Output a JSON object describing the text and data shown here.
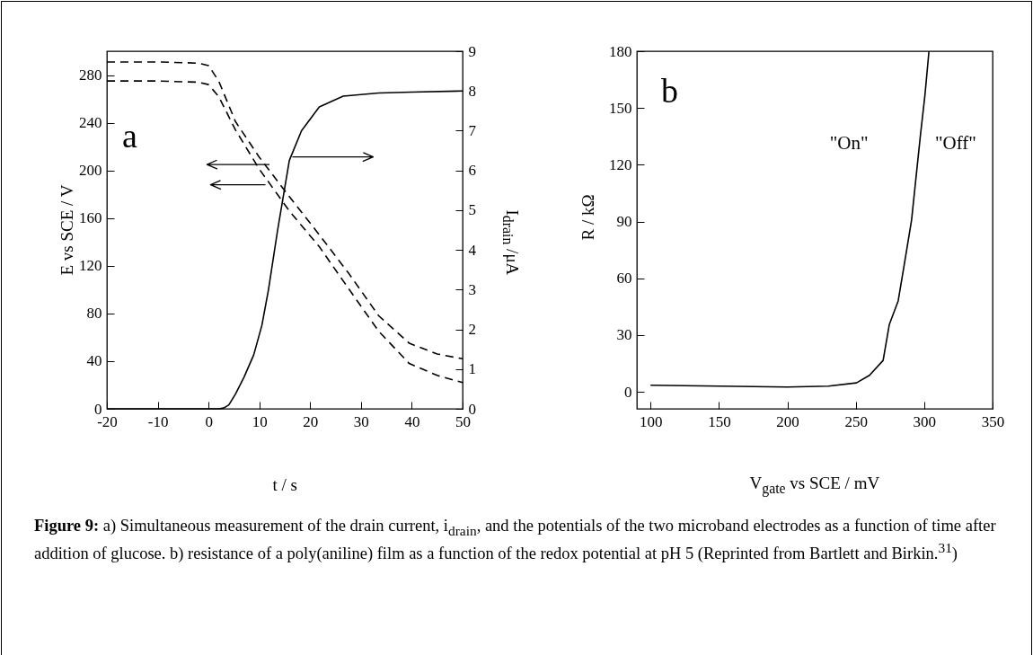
{
  "chart_data": [
    {
      "type": "line",
      "title": "a",
      "xlabel": "t / s",
      "ylabel": "E vs SCE / V",
      "y2label": "I$_{drain}$ /μA",
      "xlim": [
        -20,
        50
      ],
      "xticks": [
        -20,
        -10,
        0,
        10,
        20,
        30,
        40,
        50
      ],
      "ylim": [
        0,
        300
      ],
      "yticks": [
        0,
        40,
        80,
        120,
        160,
        200,
        240,
        280
      ],
      "y2lim": [
        0,
        9
      ],
      "y2ticks": [
        0,
        1,
        2,
        3,
        4,
        5,
        6,
        7,
        8,
        9
      ],
      "grid": false,
      "annotations": [
        "Figure 9: a) Simultaneous measurement of the drain current, i$_{drain}$, and the potentials of the two microband electrodes as a function of time after addition of glucose.  b) resistance of a poly(aniline) film as a function of the redox potential at pH 5 (Reprinted from Bartlett and Birkin.$^{31}$)"
      ],
      "series": [
        {
          "color": "#000000",
          "line_style": "dashed",
          "x": [
            -20,
            -10,
            -2,
            0,
            2,
            5.3,
            10,
            15.9,
            21.8,
            27.7,
            33.5,
            39.5,
            45,
            50
          ],
          "values": [
            291,
            291,
            290,
            288,
            275,
            241,
            211,
            178,
            146,
            113,
            78,
            55,
            46,
            42
          ]
        },
        {
          "color": "#000000",
          "line_style": "dashed",
          "x": [
            -20,
            -10,
            -2,
            0,
            2,
            5.3,
            10,
            15.9,
            21.8,
            27.7,
            33.5,
            39.5,
            45,
            50
          ],
          "values": [
            275,
            275,
            274,
            272,
            262,
            234,
            201,
            166,
            136,
            100,
            65,
            38,
            28,
            22
          ]
        },
        {
          "color": "#000000",
          "line_style": "solid",
          "axis": "y2",
          "x": [
            -20,
            0,
            2,
            3,
            4,
            5.3,
            7,
            8.9,
            10.5,
            11.8,
            13.6,
            15.9,
            18.3,
            21.8,
            26.5,
            33.5,
            40,
            50
          ],
          "values": [
            0,
            0,
            0,
            0.02,
            0.1,
            0.37,
            0.8,
            1.36,
            2.1,
            3.0,
            4.5,
            6.25,
            7.0,
            7.6,
            7.87,
            7.95,
            7.97,
            8.0
          ]
        }
      ]
    },
    {
      "type": "line",
      "title": "b",
      "xlabel": "V$_{gate}$ vs SCE / mV",
      "ylabel": "R / kΩ",
      "xlim": [
        90,
        350
      ],
      "xticks": [
        100,
        150,
        200,
        250,
        300,
        350
      ],
      "ylim": [
        -9,
        180
      ],
      "yticks": [
        0,
        30,
        60,
        90,
        120,
        150,
        180
      ],
      "grid": false,
      "annotations": [
        "\"On\"",
        "\"Off\""
      ],
      "series": [
        {
          "color": "#000000",
          "line_style": "solid",
          "x": [
            100,
            150,
            200,
            230,
            250.5,
            260,
            270,
            274.5,
            281,
            285.4,
            290.8,
            294,
            297.4,
            300.6,
            303.5
          ],
          "values": [
            3.5,
            3,
            2.5,
            3,
            4.7,
            8.7,
            16.6,
            35.5,
            48,
            67,
            90.8,
            113,
            136.5,
            157,
            180
          ]
        }
      ]
    }
  ]
}
